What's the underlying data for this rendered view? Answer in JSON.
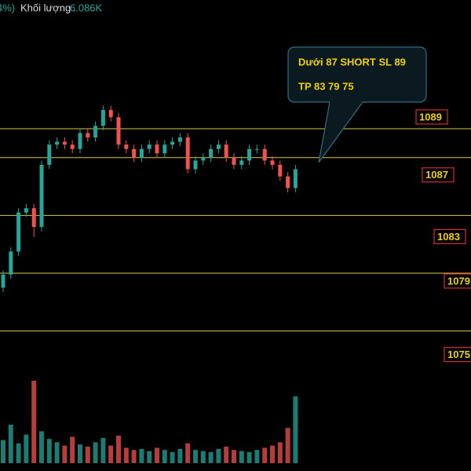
{
  "chart_data": {
    "type": "candlestick",
    "header": {
      "change": "4%)",
      "volume_name": "Khối lượng",
      "volume_label": "6.086K"
    },
    "annotation": [
      "Dưới 87 SHORT SL 89",
      "TP 83  79 75"
    ],
    "levels": [
      1089,
      1087,
      1083,
      1079,
      1075
    ],
    "level_color": "#d8c848",
    "up_color": "#26a69a",
    "down_color": "#ef5350",
    "open": [
      1078.0,
      1078.9,
      1080.5,
      1083.2,
      1083.5,
      1082.2,
      1086.5,
      1087.9,
      1088.1,
      1087.9,
      1087.6,
      1088.7,
      1088.4,
      1089.2,
      1090.3,
      1089.8,
      1087.9,
      1087.6,
      1087.0,
      1087.6,
      1087.9,
      1087.3,
      1087.9,
      1088.1,
      1088.4,
      1086.2,
      1086.8,
      1087.0,
      1087.6,
      1087.9,
      1087.0,
      1086.5,
      1086.8,
      1087.6,
      1087.6,
      1086.8,
      1086.5,
      1085.7,
      1084.9
    ],
    "high": [
      1079.2,
      1080.8,
      1083.5,
      1083.8,
      1083.8,
      1086.8,
      1088.2,
      1088.4,
      1088.4,
      1088.2,
      1089.0,
      1089.0,
      1089.5,
      1090.6,
      1090.6,
      1090.1,
      1088.2,
      1087.9,
      1087.9,
      1088.2,
      1088.2,
      1088.2,
      1088.4,
      1088.7,
      1088.7,
      1087.1,
      1087.3,
      1087.9,
      1088.2,
      1088.2,
      1087.3,
      1087.1,
      1087.9,
      1087.9,
      1087.9,
      1087.1,
      1086.8,
      1086.0,
      1086.5
    ],
    "low": [
      1077.7,
      1078.6,
      1080.2,
      1082.9,
      1081.5,
      1081.9,
      1086.2,
      1087.6,
      1087.6,
      1087.3,
      1087.3,
      1088.1,
      1088.1,
      1088.9,
      1089.5,
      1087.6,
      1087.3,
      1086.7,
      1086.7,
      1087.3,
      1087.0,
      1087.0,
      1087.6,
      1087.8,
      1085.9,
      1085.9,
      1086.5,
      1086.7,
      1087.3,
      1086.7,
      1086.2,
      1086.2,
      1086.5,
      1087.3,
      1086.5,
      1086.2,
      1085.4,
      1084.6,
      1084.6
    ],
    "close": [
      1078.9,
      1080.5,
      1083.2,
      1083.5,
      1082.2,
      1086.5,
      1087.9,
      1088.1,
      1087.9,
      1087.6,
      1088.7,
      1088.4,
      1089.2,
      1090.3,
      1089.8,
      1087.9,
      1087.6,
      1087.0,
      1087.6,
      1087.9,
      1087.3,
      1087.9,
      1088.1,
      1088.4,
      1086.2,
      1086.8,
      1087.0,
      1087.6,
      1087.9,
      1087.0,
      1086.5,
      1086.8,
      1087.6,
      1087.6,
      1086.8,
      1086.5,
      1085.7,
      1084.9,
      1086.2
    ],
    "volume": [
      2.1,
      3.5,
      1.8,
      2.6,
      7.5,
      2.9,
      2.2,
      1.9,
      1.6,
      2.4,
      1.7,
      1.5,
      1.9,
      2.3,
      1.6,
      2.5,
      1.4,
      1.2,
      1.3,
      1.1,
      1.4,
      1.2,
      1.0,
      1.3,
      1.8,
      1.2,
      1.1,
      1.0,
      1.3,
      1.5,
      1.2,
      1.1,
      1.0,
      1.2,
      1.4,
      1.6,
      1.9,
      3.2,
      6.086
    ]
  }
}
